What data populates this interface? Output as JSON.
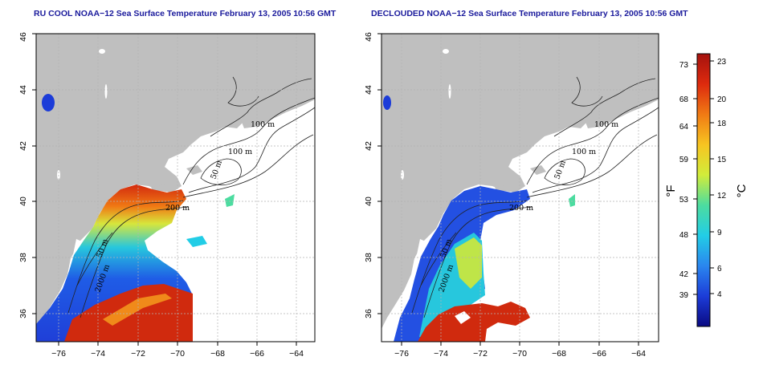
{
  "maps": [
    {
      "id": "left",
      "title": "RU COOL NOAA−12 Sea Surface Temperature February 13, 2005 10:56 GMT",
      "contour_labels": [
        "100 m",
        "100 m",
        "50 m",
        "200 m",
        "50 m",
        "2000 m"
      ]
    },
    {
      "id": "right",
      "title": "DECLOUDED NOAA−12 Sea Surface Temperature February 13, 2005 10:56 GMT",
      "contour_labels": [
        "100 m",
        "100 m",
        "50 m",
        "200 m",
        "50 m",
        "2000 m"
      ]
    }
  ],
  "axes": {
    "x_ticks": [
      "−76",
      "−74",
      "−72",
      "−70",
      "−68",
      "−66",
      "−64"
    ],
    "y_ticks": [
      "36",
      "38",
      "40",
      "42",
      "44",
      "46"
    ],
    "x_range": [
      -77,
      -63
    ],
    "y_range": [
      35,
      46
    ]
  },
  "colorbar": {
    "fahrenheit_ticks": [
      "73",
      "68",
      "64",
      "59",
      "53",
      "48",
      "42",
      "39"
    ],
    "celsius_ticks": [
      "23",
      "20",
      "18",
      "15",
      "12",
      "9",
      "6",
      "4"
    ],
    "f_unit": "°F",
    "c_unit": "°C",
    "colors": [
      "#0a0a82",
      "#1c3cd8",
      "#2a86ef",
      "#22cde6",
      "#4cdca0",
      "#d2ec3a",
      "#f7c421",
      "#f07a14",
      "#dd2a0e",
      "#a5120e"
    ]
  },
  "colors": {
    "land": "#bfbfbf",
    "ocean": "#ffffff",
    "title": "#1a1a9c",
    "grid": "#b4b4b4"
  }
}
